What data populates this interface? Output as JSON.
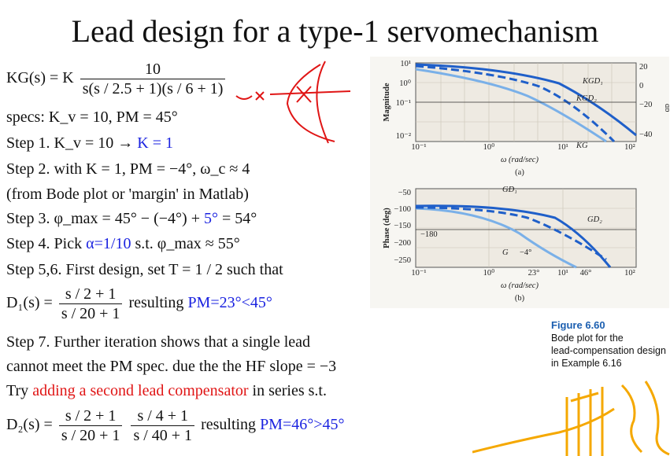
{
  "title": "Lead design for a type-1 servomechanism",
  "plant": {
    "lhs": "KG(s) = K",
    "num": "10",
    "den": "s(s / 2.5 + 1)(s / 6 + 1)"
  },
  "specs": "specs: K_v = 10, PM = 45°",
  "step1": {
    "text": "Step 1. K_v = 10 → ",
    "highlight": "K = 1"
  },
  "step2": "Step 2. with K = 1,  PM = −4°,  ω_c ≈ 4",
  "step2b": "(from Bode plot or 'margin' in Matlab)",
  "step3": {
    "text": "Step 3. φ_max = 45° − (−4°) + ",
    "highlight": "5°",
    "tail": " = 54°"
  },
  "step4": {
    "pre": "Step 4. Pick ",
    "highlight": "α=1/10",
    "post": " s.t. φ_max ≈ 55°"
  },
  "step56": "Step 5,6. First design, set T = 1 / 2 such that",
  "d1": {
    "lhs": "D₁(s) =",
    "num": "s / 2 + 1",
    "den": "s / 20 + 1",
    "result": "resulting",
    "highlight": "PM=23°<45°"
  },
  "step7a": "Step 7. Further iteration shows that a single lead",
  "step7b": "cannot meet the PM spec. due the the HF slope = −3",
  "step7c": {
    "pre": "Try ",
    "highlight": "adding a second lead compensator",
    "post": " in series s.t."
  },
  "d2": {
    "lhs": "D₂(s) =",
    "num1": "s / 2 + 1",
    "den1": "s / 20 + 1",
    "num2": "s / 4 + 1",
    "den2": "s / 40 + 1",
    "result": "resulting",
    "highlight": "PM=46°>45°"
  },
  "caption": {
    "title": "Figure 6.60",
    "lines": [
      "Bode plot for the",
      "lead-compensation design",
      "in Example 6.16"
    ]
  },
  "plot": {
    "mag_ylabel": "Magnitude",
    "mag_yticks": [
      "10¹",
      "10⁰",
      "10⁻¹",
      "10⁻²"
    ],
    "db_label": "db",
    "db_ticks": [
      "20",
      "0",
      "−20",
      "−40"
    ],
    "x_ticks": [
      "10⁻¹",
      "10⁰",
      "10¹",
      "10²"
    ],
    "xlabel": "ω (rad/sec)",
    "sub_a": "(a)",
    "sub_b": "(b)",
    "mag_labels": [
      "KGD₁",
      "KGD₂",
      "KG"
    ],
    "phase_ylabel": "Phase (deg)",
    "phase_yticks": [
      "−50",
      "−100",
      "−150",
      "−200",
      "−250"
    ],
    "phase_ref": "−180",
    "phase_labels": [
      "GD₁",
      "GD₂",
      "G",
      "−4°",
      "23°",
      "46°"
    ]
  },
  "colors": {
    "accent_blue": "#1a22e0",
    "accent_red": "#e01515",
    "caption_blue": "#1c5fb0",
    "sketch_orange": "#f5a800"
  }
}
